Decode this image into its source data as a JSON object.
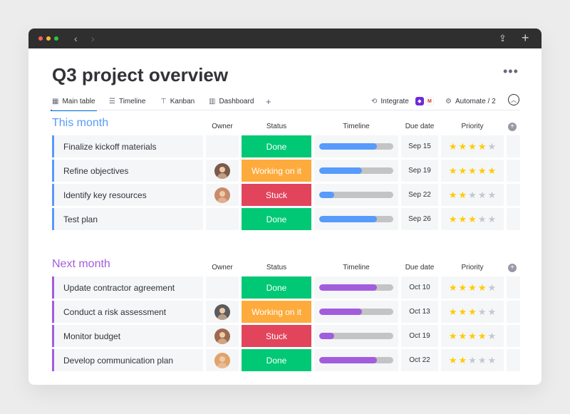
{
  "title": "Q3 project overview",
  "tabs": [
    {
      "label": "Main table",
      "icon": "table-icon"
    },
    {
      "label": "Timeline",
      "icon": "timeline-icon"
    },
    {
      "label": "Kanban",
      "icon": "kanban-icon"
    },
    {
      "label": "Dashboard",
      "icon": "dashboard-icon"
    }
  ],
  "integrate_label": "Integrate",
  "automate_label": "Automate / 2",
  "columns": {
    "owner": "Owner",
    "status": "Status",
    "timeline": "Timeline",
    "due": "Due date",
    "priority": "Priority"
  },
  "colors": {
    "done": "#00c875",
    "working": "#fdab3d",
    "stuck": "#e2445c",
    "group1": "#579bfc",
    "group2": "#a25ddc"
  },
  "groups": [
    {
      "title": "This month",
      "items": [
        {
          "name": "Finalize kickoff materials",
          "owner": "",
          "status": "Done",
          "timeline": 0.78,
          "due": "Sep 15",
          "priority": 4
        },
        {
          "name": "Refine objectives",
          "owner": "woman-avatar",
          "status": "Working on it",
          "timeline": 0.58,
          "due": "Sep 19",
          "priority": 5
        },
        {
          "name": "Identify key resources",
          "owner": "woman-avatar",
          "status": "Stuck",
          "timeline": 0.2,
          "due": "Sep 22",
          "priority": 2
        },
        {
          "name": "Test plan",
          "owner": "",
          "status": "Done",
          "timeline": 0.78,
          "due": "Sep 26",
          "priority": 3
        }
      ]
    },
    {
      "title": "Next month",
      "items": [
        {
          "name": "Update contractor agreement",
          "owner": "",
          "status": "Done",
          "timeline": 0.78,
          "due": "Oct 10",
          "priority": 4
        },
        {
          "name": "Conduct a risk assessment",
          "owner": "man-avatar",
          "status": "Working on it",
          "timeline": 0.58,
          "due": "Oct 13",
          "priority": 3
        },
        {
          "name": "Monitor budget",
          "owner": "woman-avatar",
          "status": "Stuck",
          "timeline": 0.2,
          "due": "Oct 19",
          "priority": 4
        },
        {
          "name": "Develop communication plan",
          "owner": "man-avatar",
          "status": "Done",
          "timeline": 0.78,
          "due": "Oct 22",
          "priority": 2
        }
      ]
    }
  ]
}
